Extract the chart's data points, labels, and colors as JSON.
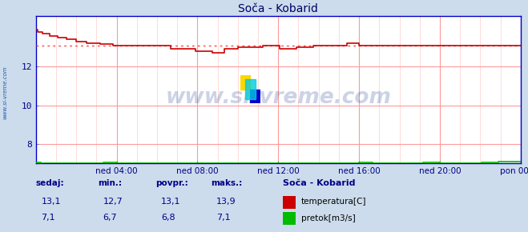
{
  "title": "Soča - Kobarid",
  "bg_color": "#ccdcec",
  "plot_bg_color": "#ffffff",
  "grid_color": "#ff9999",
  "grid_minor_color": "#ffcccc",
  "xlim": [
    0,
    288
  ],
  "ylim": [
    7.0,
    14.6
  ],
  "yticks": [
    8,
    10,
    12
  ],
  "xtick_labels": [
    "ned 04:00",
    "ned 08:00",
    "ned 12:00",
    "ned 16:00",
    "ned 20:00",
    "pon 00:00"
  ],
  "xtick_positions": [
    48,
    96,
    144,
    192,
    240,
    288
  ],
  "temp_color": "#cc0000",
  "flow_color": "#00bb00",
  "avg_line_color": "#ff4444",
  "avg_value": 13.1,
  "watermark": "www.si-vreme.com",
  "watermark_color": "#1a3a8a",
  "sidebar_text": "www.si-vreme.com",
  "sidebar_color": "#2255aa",
  "legend_title": "Soča - Kobarid",
  "legend_temp_label": "temperatura[C]",
  "legend_flow_label": "pretok[m3/s]",
  "stats_labels": [
    "sedaj:",
    "min.:",
    "povpr.:",
    "maks.:"
  ],
  "temp_stats": [
    "13,1",
    "12,7",
    "13,1",
    "13,9"
  ],
  "flow_stats": [
    "7,1",
    "6,7",
    "6,8",
    "7,1"
  ],
  "label_color": "#000088",
  "spine_color": "#6688aa",
  "axis_color": "#0000cc"
}
